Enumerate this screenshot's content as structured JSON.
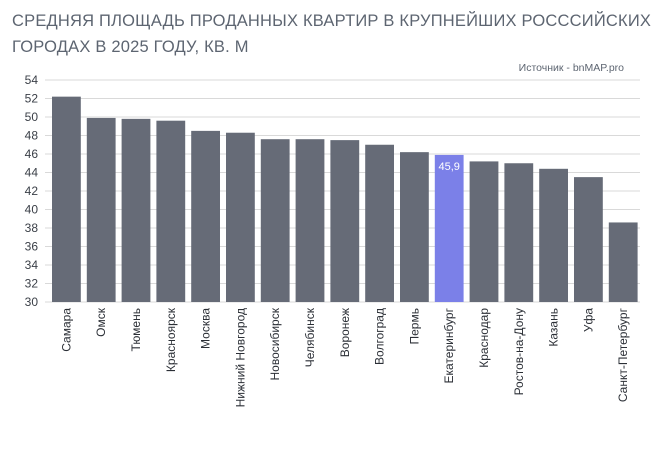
{
  "title_lines": [
    "СРЕДНЯЯ ПЛОЩАДЬ ПРОДАННЫХ КВАРТИР В КРУПНЕЙШИХ РОСССИЙСКИХ",
    "ГОРОДАХ В 2025 ГОДУ, КВ. М"
  ],
  "source": "Источник - bnMAP.pro",
  "colors": {
    "bar": "#666b77",
    "highlight": "#7b80e8",
    "grid": "#d9d9d9"
  },
  "chart_data": {
    "type": "bar",
    "title": "СРЕДНЯЯ ПЛОЩАДЬ ПРОДАННЫХ КВАРТИР В КРУПНЕЙШИХ РОСССИЙСКИХ ГОРОДАХ В 2025 ГОДУ, КВ. М",
    "categories": [
      "Самара",
      "Омск",
      "Тюмень",
      "Красноярск",
      "Москва",
      "Нижний Новгород",
      "Новосибирск",
      "Челябинск",
      "Воронеж",
      "Волгоград",
      "Пермь",
      "Екатеринбург",
      "Краснодар",
      "Ростов-на-Дону",
      "Казань",
      "Уфа",
      "Санкт-Петербург"
    ],
    "values": [
      52.2,
      49.9,
      49.8,
      49.6,
      48.5,
      48.3,
      47.6,
      47.6,
      47.5,
      47.0,
      46.2,
      45.9,
      45.2,
      45.0,
      44.4,
      43.5,
      38.6
    ],
    "highlight_index": 11,
    "data_labels": [
      {
        "index": 11,
        "text": "45,9"
      }
    ],
    "ylim": [
      30,
      54
    ],
    "yticks": [
      30,
      32,
      34,
      36,
      38,
      40,
      42,
      44,
      46,
      48,
      50,
      52,
      54
    ],
    "grid": true,
    "legend": "none"
  }
}
